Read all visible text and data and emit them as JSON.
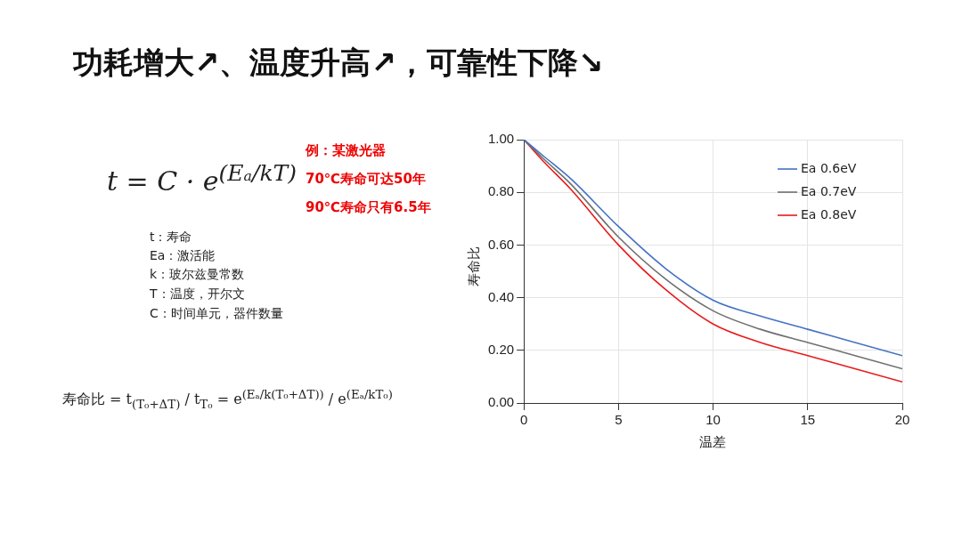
{
  "chart_data": {
    "type": "line",
    "title": "功耗增大↗、温度升高↗，可靠性下降↘",
    "xlabel": "温差",
    "ylabel": "寿命比",
    "x": [
      0,
      1,
      2.5,
      5,
      7.5,
      10,
      12.5,
      15,
      17.5,
      20
    ],
    "series": [
      {
        "name": "Ea 0.6eV",
        "color": "#4472c4",
        "values": [
          1.0,
          0.94,
          0.85,
          0.67,
          0.51,
          0.39,
          0.33,
          0.28,
          0.23,
          0.18
        ]
      },
      {
        "name": "Ea 0.7eV",
        "color": "#707070",
        "values": [
          1.0,
          0.93,
          0.83,
          0.63,
          0.47,
          0.35,
          0.28,
          0.23,
          0.18,
          0.13
        ]
      },
      {
        "name": "Ea 0.8eV",
        "color": "#e81b1b",
        "values": [
          1.0,
          0.92,
          0.81,
          0.6,
          0.43,
          0.3,
          0.23,
          0.18,
          0.13,
          0.08
        ]
      }
    ],
    "xlim": [
      0,
      20
    ],
    "xticks": [
      0,
      5,
      10,
      15,
      20
    ],
    "ylim": [
      0,
      1
    ],
    "yticks": [
      {
        "value": 0,
        "label": "0.00"
      },
      {
        "value": 0.2,
        "label": "0.20"
      },
      {
        "value": 0.4,
        "label": "0.40"
      },
      {
        "value": 0.6,
        "label": "0.60"
      },
      {
        "value": 0.8,
        "label": "0.80"
      },
      {
        "value": 1,
        "label": "1.00"
      }
    ],
    "grid": true,
    "legend": "top right",
    "marker": "none",
    "line_style": "solid",
    "annotations": [
      "t = C · e$^{(Eₐ/kT)}$",
      "例：某激光器",
      "70℃寿命可达50年",
      "90℃寿命只有6.5年",
      "t：寿命",
      "Ea：激活能",
      "k：玻尔兹曼常数",
      "T：温度，开尔文",
      "C：时间单元，器件数量",
      "寿命比 = t$_{(T₀+ΔT)}$ / t$_{T₀}$ = e$^{(Eₐ/k(T₀+ΔT))}$ / e$^{(Eₐ/kT₀)}$"
    ]
  }
}
